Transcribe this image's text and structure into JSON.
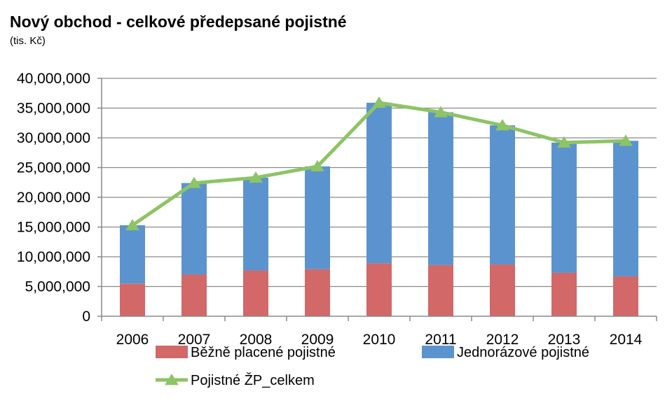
{
  "chart_data": {
    "type": "bar",
    "stacked": true,
    "title": "Nový obchod - celkové předepsané pojistné",
    "subtitle": "(tis. Kč)",
    "xlabel": "",
    "ylabel": "",
    "categories": [
      "2006",
      "2007",
      "2008",
      "2009",
      "2010",
      "2011",
      "2012",
      "2013",
      "2014"
    ],
    "ylim": [
      0,
      40000000
    ],
    "yticks": [
      0,
      5000000,
      10000000,
      15000000,
      20000000,
      25000000,
      30000000,
      35000000,
      40000000
    ],
    "ytick_labels": [
      "0",
      "5,000,000",
      "10,000,000",
      "15,000,000",
      "20,000,000",
      "25,000,000",
      "30,000,000",
      "35,000,000",
      "40,000,000"
    ],
    "grid": true,
    "legend_position": "bottom",
    "series": [
      {
        "name": "Běžně placené pojistné",
        "type": "bar",
        "color": "#D26868",
        "values": [
          5500000,
          7000000,
          7700000,
          7900000,
          8900000,
          8600000,
          8700000,
          7300000,
          6700000
        ]
      },
      {
        "name": "Jednorázové pojistné",
        "type": "bar",
        "color": "#5B93CF",
        "values": [
          9800000,
          15400000,
          15600000,
          17300000,
          27000000,
          25700000,
          23400000,
          21900000,
          22800000
        ]
      },
      {
        "name": "Pojistné ŽP_celkem",
        "type": "line",
        "color": "#8DC465",
        "marker": "triangle",
        "values": [
          15300000,
          22400000,
          23300000,
          25200000,
          35900000,
          34300000,
          32100000,
          29200000,
          29500000
        ]
      }
    ]
  }
}
